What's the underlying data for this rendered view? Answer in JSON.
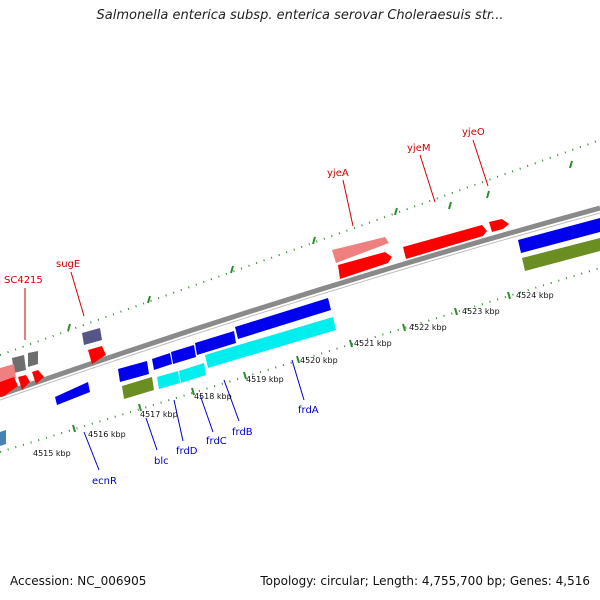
{
  "header": {
    "title": "Salmonella enterica subsp. enterica serovar Choleraesuis str..."
  },
  "footer": {
    "accession": "Accession: NC_006905",
    "summary": "Topology: circular; Length: 4,755,700 bp; Genes: 4,516"
  },
  "ticks": [
    "4515 kbp",
    "4516 kbp",
    "4517 kbp",
    "4518 kbp",
    "4519 kbp",
    "4520 kbp",
    "4521 kbp",
    "4522 kbp",
    "4523 kbp",
    "4524 kbp"
  ],
  "gene_labels_forward": [
    "SC4215",
    "sugE",
    "yjeA",
    "yjeM",
    "yjeO"
  ],
  "gene_labels_reverse": [
    "ecnR",
    "blc",
    "frdD",
    "frdC",
    "frdB",
    "frdA"
  ],
  "colors": {
    "backbone": "#8a8a8a",
    "forward_gene": "#ff0000",
    "forward_gene_light": "#f08080",
    "reverse_gene": "#0000ee",
    "reverse_gene_cyan": "#00eeee",
    "olive": "#6b8e23",
    "grey_gene": "#6e6e6e",
    "purple_gene": "#555588",
    "tick_green": "#2e8b2e",
    "forward_label": "#cc0000",
    "reverse_label": "#0000cc"
  }
}
